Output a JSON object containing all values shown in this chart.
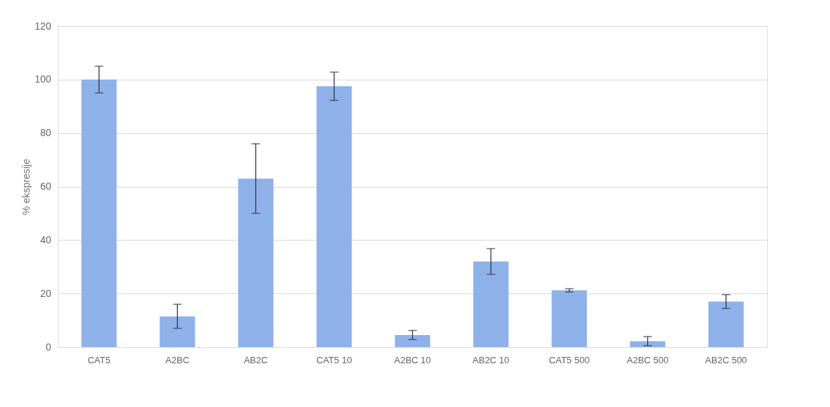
{
  "chart_data": {
    "type": "bar",
    "ylabel": "% ekspresije",
    "categories": [
      "CAT5",
      "A2BC",
      "AB2C",
      "CAT5 10",
      "A2BC 10",
      "AB2C 10",
      "CAT5 500",
      "A2BC 500",
      "AB2C 500"
    ],
    "series": [
      {
        "color": "#8fb1e9",
        "values": [
          100,
          11.5,
          63,
          97.5,
          4.5,
          32,
          21.2,
          2.2,
          17
        ],
        "errors": [
          5,
          4.5,
          13,
          5.3,
          1.7,
          4.8,
          0.6,
          1.7,
          2.6
        ]
      }
    ],
    "ylim": [
      0,
      120
    ],
    "yticks": [
      0,
      20,
      40,
      60,
      80,
      100,
      120
    ],
    "grid": "y"
  }
}
